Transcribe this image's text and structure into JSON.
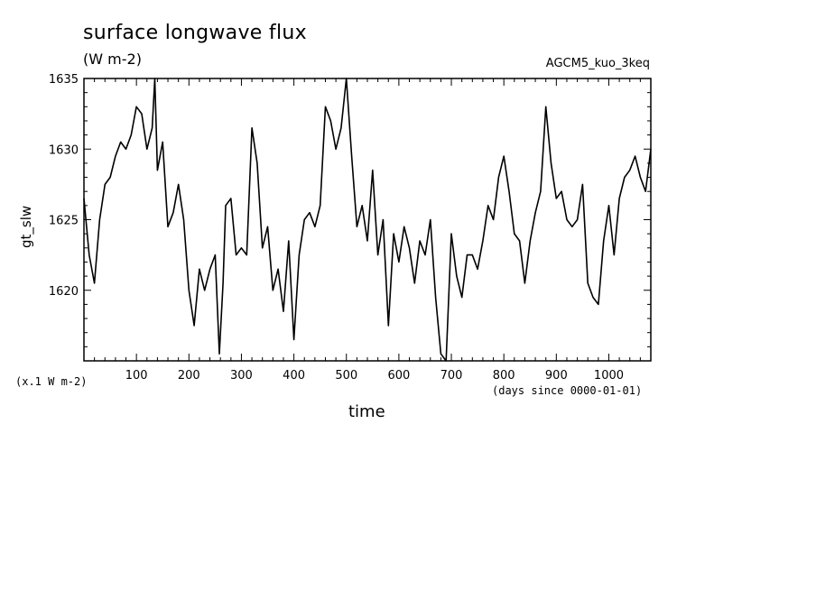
{
  "chart_data": {
    "type": "line",
    "title": "surface longwave flux",
    "subtitle": "(W m-2)",
    "run_label": "AGCM5_kuo_3keq",
    "xlabel": "time",
    "xunits": "(days since 0000-01-01)",
    "ylabel": "gt_slw",
    "yunits": "(x.1 W m-2)",
    "xlim": [
      0,
      1080
    ],
    "ylim": [
      1615,
      1635
    ],
    "xticks": [
      100,
      200,
      300,
      400,
      500,
      600,
      700,
      800,
      900,
      1000
    ],
    "yticks": [
      1620,
      1625,
      1630,
      1635
    ],
    "grid": false,
    "series": [
      {
        "x": [
          0,
          10,
          20,
          30,
          40,
          50,
          60,
          70,
          80,
          90,
          100,
          110,
          120,
          130,
          135,
          140,
          150,
          160,
          170,
          180,
          190,
          200,
          210,
          220,
          230,
          240,
          250,
          258,
          265,
          270,
          280,
          290,
          300,
          310,
          320,
          330,
          340,
          350,
          360,
          370,
          380,
          390,
          400,
          410,
          420,
          430,
          440,
          450,
          460,
          470,
          480,
          490,
          500,
          510,
          520,
          530,
          540,
          550,
          560,
          570,
          580,
          590,
          600,
          610,
          620,
          630,
          640,
          650,
          660,
          670,
          680,
          690,
          700,
          710,
          720,
          730,
          740,
          750,
          760,
          770,
          780,
          790,
          800,
          810,
          820,
          830,
          840,
          850,
          860,
          870,
          880,
          890,
          900,
          910,
          920,
          930,
          940,
          950,
          960,
          970,
          980,
          990,
          1000,
          1010,
          1020,
          1030,
          1040,
          1050,
          1060,
          1070,
          1080
        ],
        "values": [
          1626.5,
          1622.5,
          1620.5,
          1625.0,
          1627.5,
          1628.0,
          1629.5,
          1630.5,
          1630.0,
          1631.0,
          1633.0,
          1632.5,
          1630.0,
          1631.5,
          1635.0,
          1628.5,
          1630.5,
          1624.5,
          1625.5,
          1627.5,
          1625.0,
          1620.0,
          1617.5,
          1621.5,
          1620.0,
          1621.5,
          1622.5,
          1615.5,
          1620.5,
          1626.0,
          1626.5,
          1622.5,
          1623.0,
          1622.5,
          1631.5,
          1629.0,
          1623.0,
          1624.5,
          1620.0,
          1621.5,
          1618.5,
          1623.5,
          1616.5,
          1622.5,
          1625.0,
          1625.5,
          1624.5,
          1626.0,
          1633.0,
          1632.0,
          1630.0,
          1631.5,
          1635.0,
          1629.5,
          1624.5,
          1626.0,
          1623.5,
          1628.5,
          1622.5,
          1625.0,
          1617.5,
          1624.0,
          1622.0,
          1624.5,
          1623.0,
          1620.5,
          1623.5,
          1622.5,
          1625.0,
          1619.5,
          1615.5,
          1615.0,
          1624.0,
          1621.0,
          1619.5,
          1622.5,
          1622.5,
          1621.5,
          1623.5,
          1626.0,
          1625.0,
          1628.0,
          1629.5,
          1627.0,
          1624.0,
          1623.5,
          1620.5,
          1623.5,
          1625.5,
          1627.0,
          1633.0,
          1629.0,
          1626.5,
          1627.0,
          1625.0,
          1624.5,
          1625.0,
          1627.5,
          1620.5,
          1619.5,
          1619.0,
          1623.5,
          1626.0,
          1622.5,
          1626.5,
          1628.0,
          1628.5,
          1629.5,
          1628.0,
          1627.0,
          1630.0
        ]
      }
    ]
  }
}
